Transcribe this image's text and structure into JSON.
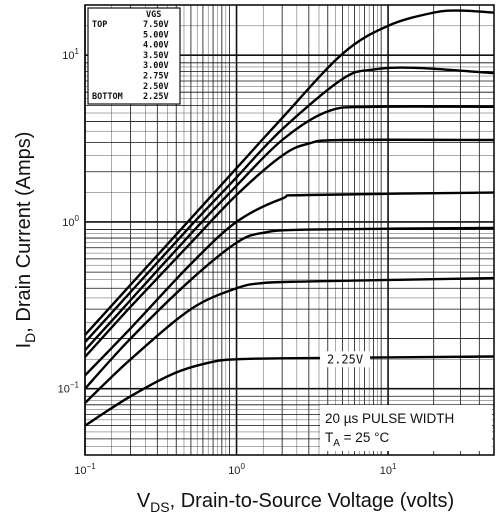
{
  "chart_data": {
    "type": "line",
    "xscale": "log",
    "yscale": "log",
    "xlim": [
      0.1,
      50
    ],
    "ylim": [
      0.04,
      20
    ],
    "xlabel": {
      "main": "V",
      "sub": "DS",
      "rest": ", Drain-to-Source Voltage (volts)"
    },
    "ylabel": {
      "main": "I",
      "sub": "D",
      "rest": ", Drain Current (Amps)"
    },
    "xticks": [
      {
        "value": 0.1,
        "base": "10",
        "exp": "−1"
      },
      {
        "value": 1,
        "base": "10",
        "exp": "0"
      },
      {
        "value": 10,
        "base": "10",
        "exp": "1"
      }
    ],
    "yticks": [
      {
        "value": 0.1,
        "base": "10",
        "exp": "−1"
      },
      {
        "value": 1,
        "base": "10",
        "exp": "0"
      },
      {
        "value": 10,
        "base": "10",
        "exp": "1"
      }
    ],
    "legend": {
      "header": "VGS",
      "top_label": "TOP",
      "bottom_label": "BOTTOM",
      "entries": [
        "7.50V",
        "5.00V",
        "4.00V",
        "3.50V",
        "3.00V",
        "2.75V",
        "2.50V",
        "2.25V"
      ],
      "position": "top-left"
    },
    "annotations": {
      "curve_label": "2.25V",
      "pulse": "20 µs PULSE WIDTH",
      "temp_main": "T",
      "temp_sub": "A",
      "temp_rest": " = 25 °C"
    },
    "series": [
      {
        "name": "7.50V",
        "x": [
          0.1,
          0.2,
          0.5,
          1,
          2,
          5,
          10,
          20,
          30,
          50
        ],
        "y": [
          0.21,
          0.42,
          1.05,
          2.1,
          4.2,
          10.2,
          15,
          18,
          18.5,
          18
        ]
      },
      {
        "name": "5.00V",
        "x": [
          0.1,
          0.2,
          0.5,
          1,
          2,
          5,
          8,
          15,
          50
        ],
        "y": [
          0.19,
          0.38,
          0.95,
          1.85,
          3.6,
          7.2,
          8.2,
          8.4,
          7.8
        ]
      },
      {
        "name": "4.00V",
        "x": [
          0.1,
          0.2,
          0.5,
          1,
          2,
          4,
          8,
          50
        ],
        "y": [
          0.17,
          0.34,
          0.85,
          1.65,
          3.1,
          4.6,
          4.9,
          4.9
        ]
      },
      {
        "name": "3.50V",
        "x": [
          0.1,
          0.2,
          0.5,
          1,
          2,
          3,
          5,
          50
        ],
        "y": [
          0.155,
          0.31,
          0.75,
          1.45,
          2.5,
          2.95,
          3.1,
          3.1
        ]
      },
      {
        "name": "3.00V",
        "x": [
          0.1,
          0.2,
          0.5,
          1,
          2,
          3,
          50
        ],
        "y": [
          0.12,
          0.23,
          0.56,
          1.0,
          1.38,
          1.45,
          1.5
        ]
      },
      {
        "name": "2.75V",
        "x": [
          0.1,
          0.2,
          0.5,
          1,
          1.5,
          3,
          50
        ],
        "y": [
          0.1,
          0.2,
          0.45,
          0.75,
          0.86,
          0.9,
          0.92
        ]
      },
      {
        "name": "2.50V",
        "x": [
          0.1,
          0.2,
          0.5,
          1,
          1.5,
          3,
          50
        ],
        "y": [
          0.082,
          0.15,
          0.3,
          0.4,
          0.43,
          0.44,
          0.46
        ]
      },
      {
        "name": "2.25V",
        "x": [
          0.1,
          0.2,
          0.4,
          0.7,
          1,
          2,
          50
        ],
        "y": [
          0.06,
          0.09,
          0.125,
          0.145,
          0.15,
          0.152,
          0.156
        ]
      }
    ]
  }
}
